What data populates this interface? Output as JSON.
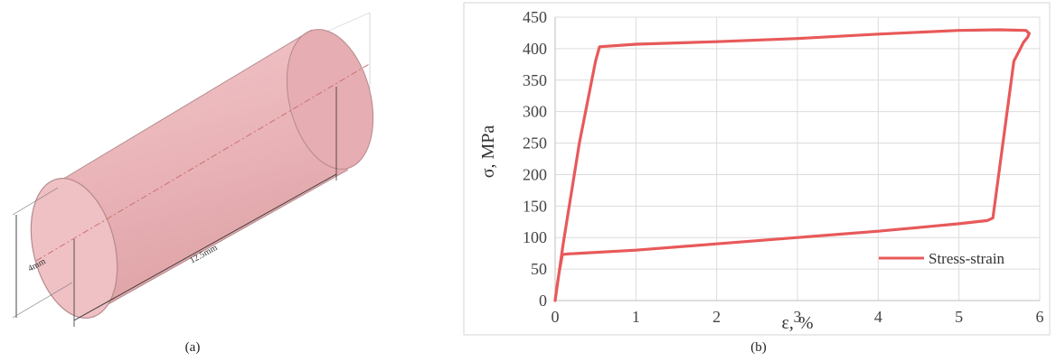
{
  "panel_a": {
    "caption": "(a)",
    "dimensions": {
      "diameter_label": "4mm",
      "length_label": "12.5mm"
    },
    "colors": {
      "fill": "#eebbbf",
      "edge": "#b48a8d",
      "axis": "#c86a6a"
    }
  },
  "panel_b": {
    "caption": "(b)"
  },
  "chart_data": {
    "type": "line",
    "xlabel": "ε, %",
    "ylabel": "σ, MPa",
    "xlim": [
      0,
      6
    ],
    "ylim": [
      0,
      450
    ],
    "xticks": [
      0,
      1,
      2,
      3,
      4,
      5,
      6
    ],
    "yticks": [
      0,
      50,
      100,
      150,
      200,
      250,
      300,
      350,
      400,
      450
    ],
    "grid": true,
    "legend": {
      "position": "bottom-right"
    },
    "series": [
      {
        "name": "Stress-strain",
        "color": "#e8595a",
        "points": [
          [
            0,
            0
          ],
          [
            0.02,
            20
          ],
          [
            0.05,
            45
          ],
          [
            0.09,
            73
          ],
          [
            0.15,
            74
          ],
          [
            1.0,
            80
          ],
          [
            2.0,
            90
          ],
          [
            3.0,
            100
          ],
          [
            4.0,
            110
          ],
          [
            5.0,
            122
          ],
          [
            5.35,
            127
          ],
          [
            5.42,
            131
          ],
          [
            5.68,
            380
          ],
          [
            5.72,
            390
          ],
          [
            5.8,
            410
          ],
          [
            5.85,
            418
          ],
          [
            5.87,
            424
          ],
          [
            5.83,
            429
          ],
          [
            5.5,
            430
          ],
          [
            5.0,
            429
          ],
          [
            4.0,
            423
          ],
          [
            3.0,
            416
          ],
          [
            2.0,
            411
          ],
          [
            1.0,
            407
          ],
          [
            0.55,
            403
          ],
          [
            0.5,
            380
          ],
          [
            0.3,
            250
          ],
          [
            0.1,
            90
          ],
          [
            0,
            0
          ]
        ]
      }
    ]
  }
}
